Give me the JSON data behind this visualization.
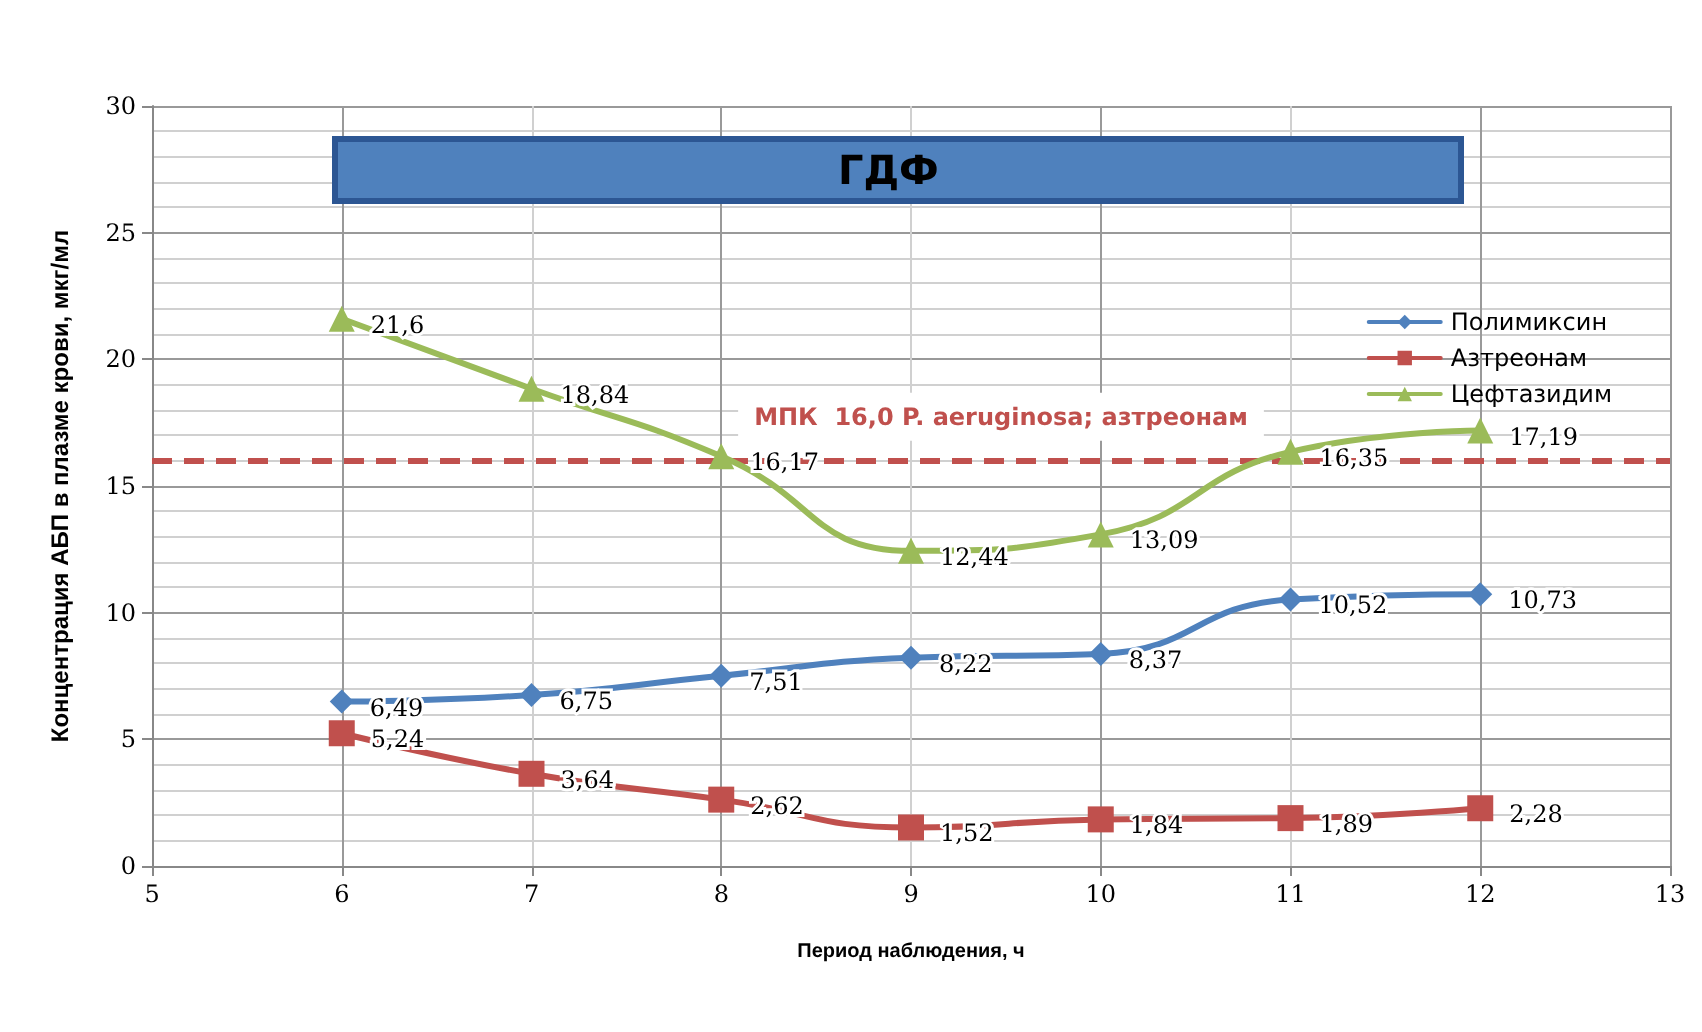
{
  "chart_data": {
    "type": "line",
    "title": "ГДФ",
    "xlabel": "Период наблюдения, ч",
    "ylabel": "Концентрация АБП в плазме крови, мкг/мл",
    "x": [
      6,
      7,
      8,
      9,
      10,
      11,
      12
    ],
    "series": [
      {
        "name": "Полимиксин",
        "color": "#4f81bd",
        "marker": "diamond",
        "values": [
          6.49,
          6.75,
          7.51,
          8.22,
          8.37,
          10.52,
          10.73
        ],
        "value_labels": [
          "6,49",
          "6,75",
          "7,51",
          "8,22",
          "8,37",
          "10,52",
          "10,73"
        ]
      },
      {
        "name": "Азтреонам",
        "color": "#c0504d",
        "marker": "square",
        "values": [
          5.24,
          3.64,
          2.62,
          1.52,
          1.84,
          1.89,
          2.28
        ],
        "value_labels": [
          "5,24",
          "3,64",
          "2,62",
          "1,52",
          "1,84",
          "1,89",
          "2,28"
        ]
      },
      {
        "name": "Цефтазидим",
        "color": "#9bbb59",
        "marker": "triangle",
        "values": [
          21.6,
          18.84,
          16.17,
          12.44,
          13.09,
          16.35,
          17.19
        ],
        "value_labels": [
          "21,6",
          "18,84",
          "16,17",
          "12,44",
          "13,09",
          "16,35",
          "17,19"
        ]
      }
    ],
    "xlim": [
      5,
      13
    ],
    "xticks": [
      5,
      6,
      7,
      8,
      9,
      10,
      11,
      12,
      13
    ],
    "ylim": [
      0,
      30
    ],
    "yticks": [
      0,
      5,
      10,
      15,
      20,
      25,
      30
    ],
    "grid": true,
    "legend": "top right",
    "line_style": "solid",
    "ref_lines": [
      {
        "axis": "y",
        "value": 16,
        "label": "МПК  16,0 P. aeruginosa; азтреонам",
        "color": "#c0504d",
        "line_style": "dashed"
      }
    ]
  }
}
